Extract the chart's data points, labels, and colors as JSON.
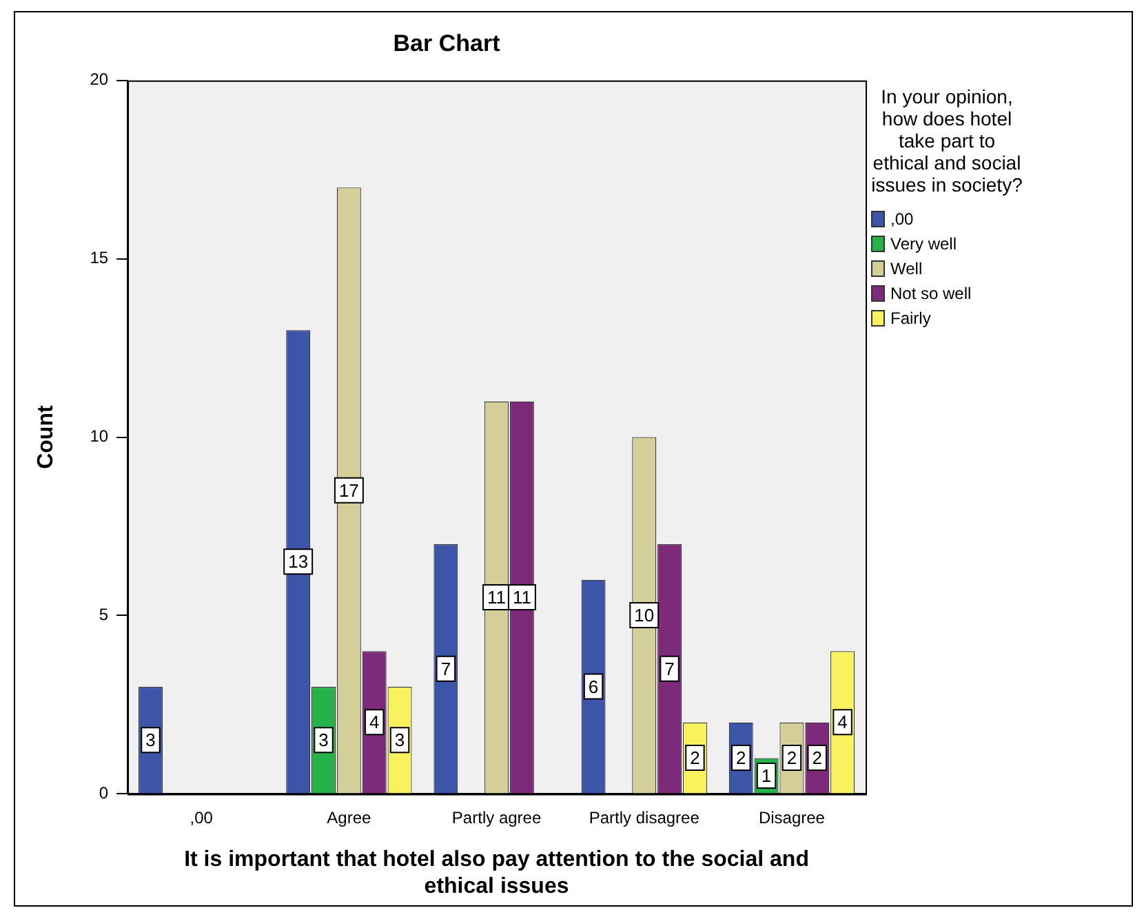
{
  "chart_data": {
    "type": "bar",
    "title": "Bar Chart",
    "xlabel": "It is important that hotel also pay attention to the social and ethical issues",
    "ylabel": "Count",
    "legend_title": "In your opinion, how does hotel take part to ethical and social issues in society?",
    "categories": [
      ",00",
      "Agree",
      "Partly agree",
      "Partly disagree",
      "Disagree"
    ],
    "series": [
      {
        "name": ",00",
        "color": "#3d55a8",
        "values": [
          3,
          13,
          7,
          6,
          2
        ]
      },
      {
        "name": "Very well",
        "color": "#25b24a",
        "values": [
          null,
          3,
          null,
          null,
          1
        ]
      },
      {
        "name": "Well",
        "color": "#d4cf98",
        "values": [
          null,
          17,
          11,
          10,
          2
        ]
      },
      {
        "name": "Not so well",
        "color": "#7c2a79",
        "values": [
          null,
          4,
          11,
          7,
          2
        ]
      },
      {
        "name": "Fairly",
        "color": "#f9f25f",
        "values": [
          null,
          3,
          null,
          2,
          4
        ]
      }
    ],
    "ylim": [
      0,
      20
    ],
    "yticks": [
      0,
      5,
      10,
      15,
      20
    ],
    "grid": false,
    "legend": "right",
    "data_labels": true
  }
}
